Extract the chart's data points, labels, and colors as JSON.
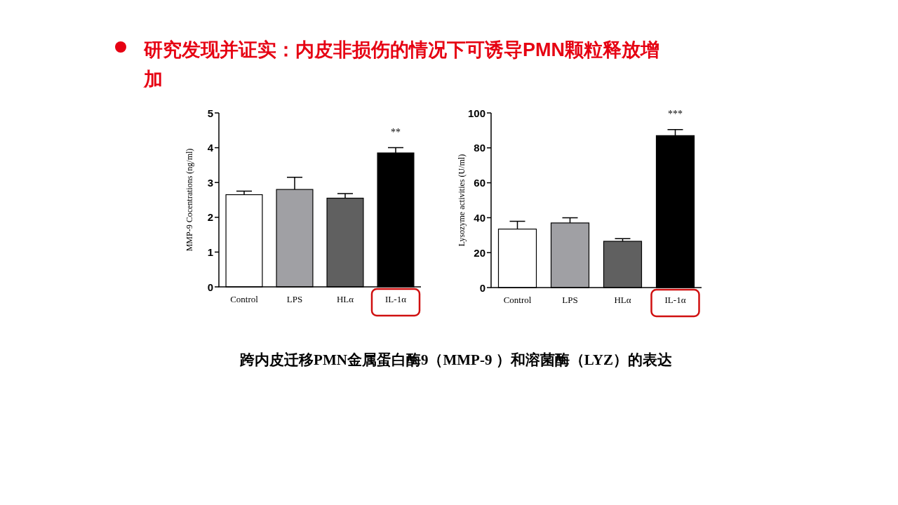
{
  "chart_data": [
    {
      "type": "bar",
      "title": "研究发现并证实：内皮非损伤的情况下可诱导PMN颗粒释放增加",
      "ylabel": "MMP-9 Cocentrations (ng/ml)",
      "categories": [
        "Control",
        "LPS",
        "HLα",
        "IL-1α"
      ],
      "values": [
        2.65,
        2.8,
        2.55,
        3.85
      ],
      "errors": [
        0.1,
        0.35,
        0.13,
        0.15
      ],
      "colors": [
        "#ffffff",
        "#a0a0a4",
        "#606060",
        "#000000"
      ],
      "ylim": [
        0,
        5
      ],
      "yticks": [
        0,
        1,
        2,
        3,
        4,
        5
      ],
      "annotations": [
        {
          "text": "**",
          "x": "IL-1α",
          "y": 4.0
        },
        "跨内皮迁移PMN金属蛋白酶9（MMP-9 ）和溶菌酶（LYZ）的表达"
      ]
    },
    {
      "type": "bar",
      "ylabel": "Lysozyme activities (U/ml)",
      "categories": [
        "Control",
        "LPS",
        "HLα",
        "IL-1α"
      ],
      "values": [
        33.5,
        37,
        26.5,
        87
      ],
      "errors": [
        4.5,
        3,
        1.5,
        3.5
      ],
      "colors": [
        "#ffffff",
        "#a0a0a4",
        "#606060",
        "#000000"
      ],
      "ylim": [
        0,
        100
      ],
      "yticks": [
        0,
        20,
        40,
        60,
        80,
        100
      ],
      "annotations": [
        {
          "text": "***",
          "x": "IL-1α",
          "y": 90.5
        }
      ]
    }
  ]
}
